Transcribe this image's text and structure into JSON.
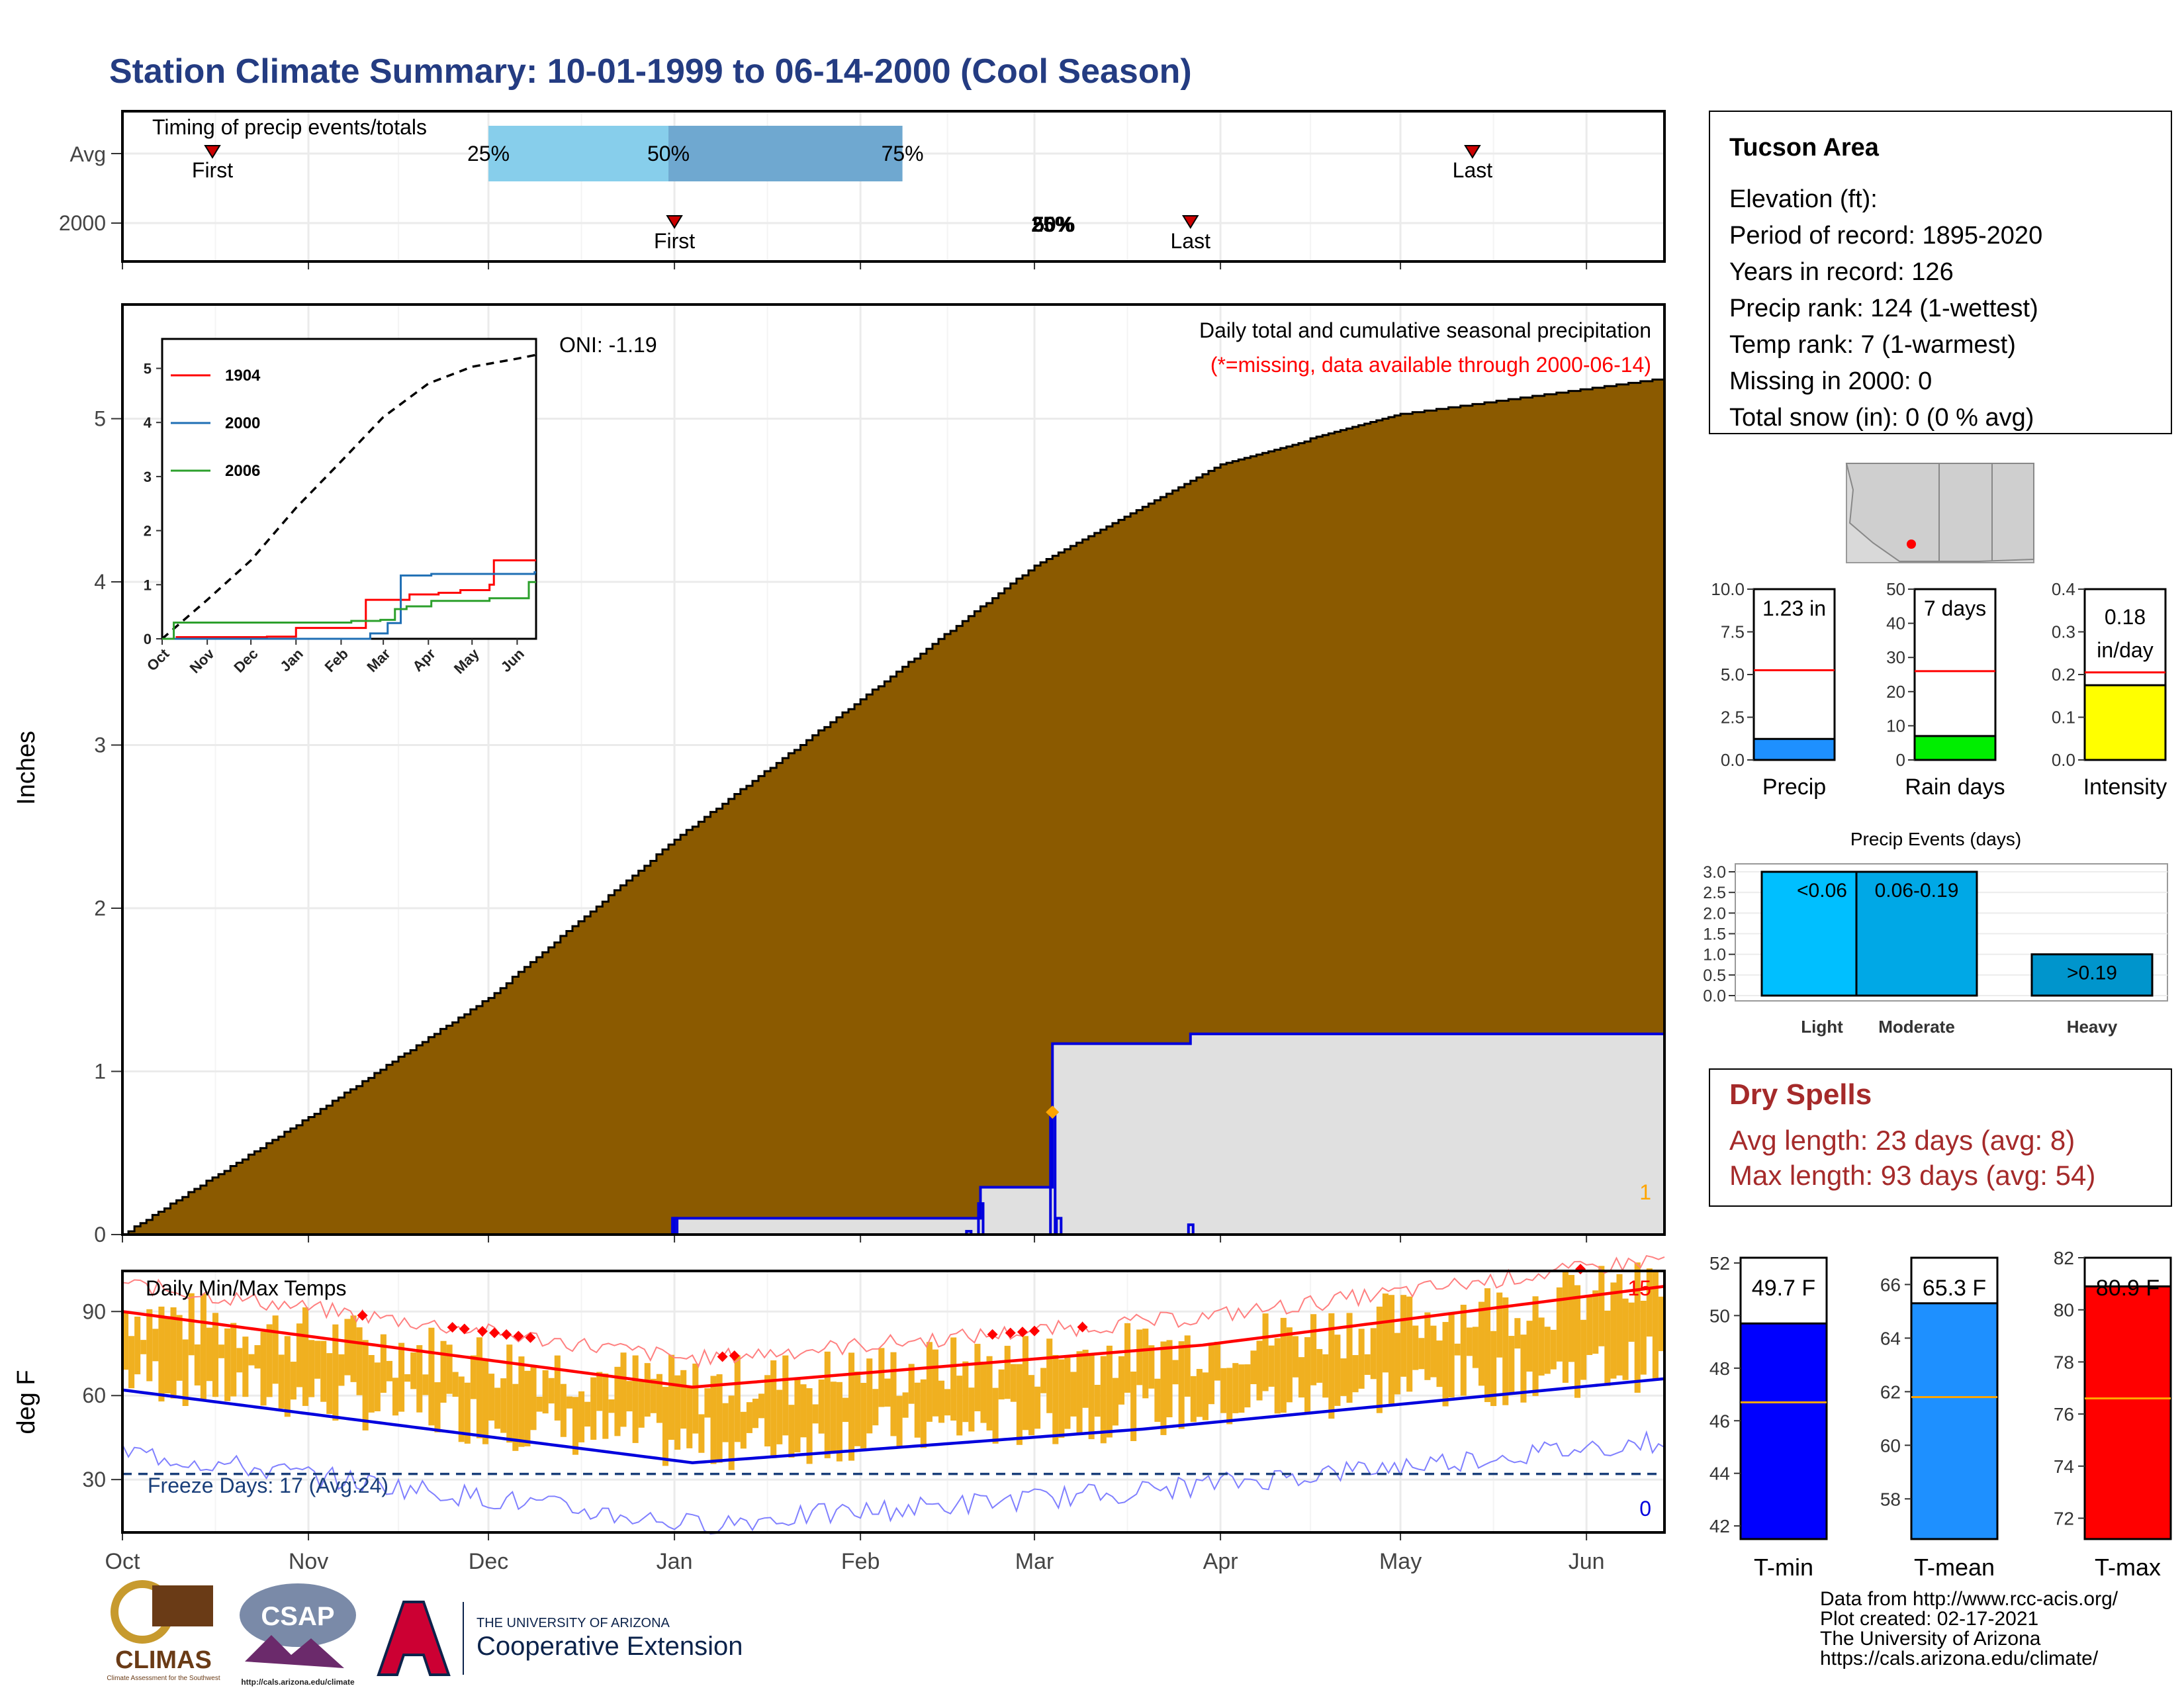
{
  "page_title": "Station Climate Summary: 10-01-1999 to 06-14-2000 (Cool Season)",
  "colors": {
    "title": "#243c82",
    "precip_fill": "#8b5a00",
    "current_fill": "#e0e0e0",
    "current_line": "#0000dd",
    "red_line": "#ff0000",
    "blue_line": "#0000dd",
    "temp_bar": "#f0b020",
    "dry_spell": "#a52a2a"
  },
  "timing_panel": {
    "title": "Timing of precip events/totals",
    "row_labels": [
      "Avg",
      "2000"
    ],
    "avg": {
      "first_label": "First",
      "last_label": "Last",
      "pct25": "25%",
      "pct50": "50%",
      "pct75": "75%",
      "first_date": "1999-10-16",
      "last_date": "2000-05-13",
      "p25_date": "1999-12-01",
      "p50_date": "1999-12-31",
      "p75_date": "2000-02-08"
    },
    "cur": {
      "first_label": "First",
      "last_label": "Last",
      "overlap_label": "25%",
      "overlap_label2": "50%",
      "first_date": "2000-01-01",
      "last_date": "2000-03-27",
      "pct_date": "2000-03-04"
    }
  },
  "main_panel": {
    "ylabel": "Inches",
    "oni": "ONI: -1.19",
    "subtitle": "Daily total and cumulative seasonal precipitation",
    "missing_note": "(*=missing, data available through 2000-06-14)",
    "count_label": "1",
    "yticks": [
      "0",
      "1",
      "2",
      "3",
      "4",
      "5"
    ]
  },
  "inset": {
    "legend": [
      "1904",
      "2000",
      "2006"
    ],
    "legend_colors": [
      "#ff0000",
      "#1f6fb4",
      "#2ca02c"
    ],
    "yticks": [
      "0",
      "1",
      "2",
      "3",
      "4",
      "5"
    ],
    "months": [
      "Oct",
      "Nov",
      "Dec",
      "Jan",
      "Feb",
      "Mar",
      "Apr",
      "May",
      "Jun"
    ]
  },
  "temp_panel": {
    "title": "Daily Min/Max Temps",
    "ylabel": "deg F",
    "yticks": [
      "30",
      "60",
      "90"
    ],
    "freeze": "Freeze Days: 17 (Avg:24)",
    "max_count": "15",
    "min_count": "0"
  },
  "x_months": [
    "Oct",
    "Nov",
    "Dec",
    "Jan",
    "Feb",
    "Mar",
    "Apr",
    "May",
    "Jun"
  ],
  "info_box": {
    "name": "Tucson Area",
    "lines": [
      "Elevation (ft):",
      "Period of record: 1895-2020",
      "Years in record: 126",
      "Precip rank: 124 (1-wettest)",
      "Temp rank: 7 (1-warmest)",
      "Missing in 2000: 0",
      "Total snow (in): 0 (0 % avg)"
    ]
  },
  "mini_bars": [
    {
      "label": "Precip",
      "value_text": "1.23 in",
      "value": 1.23,
      "avg": 5.25,
      "max": 10,
      "ticks": [
        "0.0",
        "2.5",
        "5.0",
        "7.5",
        "10.0"
      ],
      "color": "#1e90ff"
    },
    {
      "label": "Rain days",
      "value_text": "7 days",
      "value": 7,
      "avg": 26,
      "max": 50,
      "ticks": [
        "0",
        "10",
        "20",
        "30",
        "40",
        "50"
      ],
      "color": "#00ee00"
    },
    {
      "label": "Intensity",
      "value_text": "0.18",
      "value_text2": "in/day",
      "value": 0.175,
      "avg": 0.205,
      "max": 0.4,
      "ticks": [
        "0.0",
        "0.1",
        "0.2",
        "0.3",
        "0.4"
      ],
      "color": "#ffff00"
    }
  ],
  "events": {
    "title": "Precip Events (days)",
    "yticks": [
      "0.0",
      "0.5",
      "1.0",
      "1.5",
      "2.0",
      "2.5",
      "3.0"
    ],
    "bars": [
      {
        "label": "Light",
        "text": "<0.06",
        "value": 3,
        "color": "#00bfff"
      },
      {
        "label": "Moderate",
        "text": "0.06-0.19",
        "value": 3,
        "color": "#00a8e6"
      },
      {
        "label": "Heavy",
        "text": ">0.19",
        "value": 1,
        "color": "#0095cc"
      }
    ]
  },
  "dry_spells": {
    "title": "Dry Spells",
    "avg": "Avg length: 23 days (avg: 8)",
    "max": "Max length: 93 days (avg: 54)"
  },
  "temp_bars": [
    {
      "label": "T-min",
      "value_text": "49.7 F",
      "value": 49.7,
      "avg": 46.7,
      "min": 41.5,
      "max": 52.2,
      "ticks": [
        "42",
        "44",
        "46",
        "48",
        "50",
        "52"
      ],
      "color": "#0000ff"
    },
    {
      "label": "T-mean",
      "value_text": "65.3 F",
      "value": 65.3,
      "avg": 61.8,
      "min": 56.5,
      "max": 67.0,
      "ticks": [
        "58",
        "60",
        "62",
        "64",
        "66"
      ],
      "color": "#1e90ff"
    },
    {
      "label": "T-max",
      "value_text": "80.9 F",
      "value": 80.9,
      "avg": 76.6,
      "min": 71.2,
      "max": 82.0,
      "ticks": [
        "72",
        "74",
        "76",
        "78",
        "80",
        "82"
      ],
      "color": "#ff0000"
    }
  ],
  "footer": {
    "lines": [
      "Data from http://www.rcc-acis.org/",
      "Plot created: 02-17-2021",
      "The University of Arizona",
      "https://cals.arizona.edu/climate/"
    ],
    "logo1": "CLIMAS",
    "logo1_sub": "Climate Assessment for the Southwest",
    "logo2": "CSAP",
    "logo2_url": "http://cals.arizona.edu/climate",
    "univ": "THE UNIVERSITY OF ARIZONA",
    "coop": "Cooperative Extension"
  },
  "chart_data": {
    "type": "area",
    "title": "Daily total and cumulative seasonal precipitation",
    "ylabel": "Inches",
    "ylim": [
      0,
      5.7
    ],
    "series": [
      {
        "name": "",
        "x": [
          "1999-10-01",
          "1999-11-01",
          "1999-12-01",
          "2000-01-01",
          "2000-02-01",
          "2000-03-01",
          "2000-04-01",
          "2000-05-01",
          "2000-06-01",
          "2000-06-14"
        ],
        "values": [
          0.0,
          0.72,
          1.45,
          2.42,
          3.28,
          4.1,
          4.72,
          5.03,
          5.18,
          5.25
        ]
      },
      {
        "name": "",
        "x": [
          "1999-10-01",
          "2000-01-01",
          "2000-02-21",
          "2000-03-04",
          "2000-03-27",
          "2000-06-14"
        ],
        "values": [
          0.0,
          0.1,
          0.29,
          1.17,
          1.23,
          1.23
        ]
      }
    ]
  }
}
